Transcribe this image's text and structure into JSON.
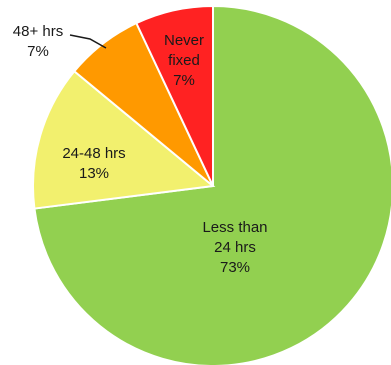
{
  "chart_data": {
    "type": "pie",
    "title": "",
    "start_angle_deg": 0,
    "direction": "clockwise",
    "slices": [
      {
        "name": "Less than 24 hrs",
        "lines": [
          "Less than",
          "24 hrs"
        ],
        "pct_label": "73%",
        "value": 73,
        "color": "#92d050"
      },
      {
        "name": "24-48 hrs",
        "lines": [
          "24-48 hrs"
        ],
        "pct_label": "13%",
        "value": 13,
        "color": "#f2f06e"
      },
      {
        "name": "48+ hrs",
        "lines": [
          "48+ hrs"
        ],
        "pct_label": "7%",
        "value": 7,
        "color": "#ff9900"
      },
      {
        "name": "Never fixed",
        "lines": [
          "Never",
          "fixed"
        ],
        "pct_label": "7%",
        "value": 7,
        "color": "#ff2222"
      }
    ]
  }
}
